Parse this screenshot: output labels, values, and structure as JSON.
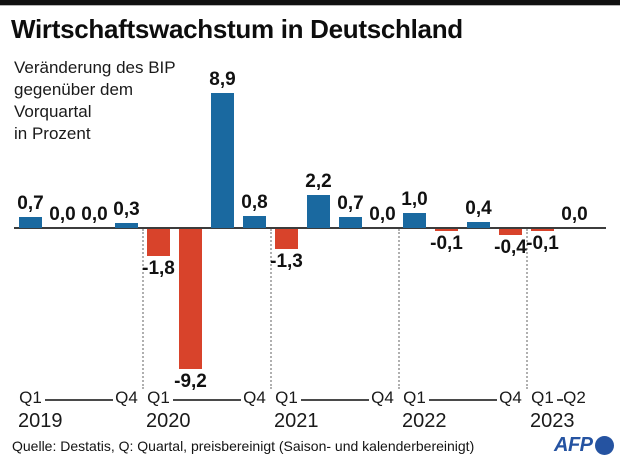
{
  "header": {
    "title": "Wirtschaftswachstum in Deutschland",
    "subtitle": {
      "lines": [
        "Veränderung des BIP",
        "gegenüber dem",
        "Vorquartal",
        "in Prozent"
      ]
    }
  },
  "chart_data": {
    "type": "bar",
    "title": "Wirtschaftswachstum in Deutschland",
    "subtitle": "Veränderung des BIP gegenüber dem Vorquartal in Prozent",
    "unit": "percent, change vs previous quarter",
    "categories": [
      "Q1 2019",
      "Q2 2019",
      "Q3 2019",
      "Q4 2019",
      "Q1 2020",
      "Q2 2020",
      "Q3 2020",
      "Q4 2020",
      "Q1 2021",
      "Q2 2021",
      "Q3 2021",
      "Q4 2021",
      "Q1 2022",
      "Q2 2022",
      "Q3 2022",
      "Q4 2022",
      "Q1 2023",
      "Q2 2023"
    ],
    "values": [
      0.7,
      0.0,
      0.0,
      0.3,
      -1.8,
      -9.2,
      8.9,
      0.8,
      -1.3,
      2.2,
      0.7,
      0.0,
      1.0,
      -0.1,
      0.4,
      -0.4,
      -0.1,
      0.0
    ],
    "value_labels": [
      "0,7",
      "0,0",
      "0,0",
      "0,3",
      "-1,8",
      "-9,2",
      "8,9",
      "0,8",
      "-1,3",
      "2,2",
      "0,7",
      "0,0",
      "1,0",
      "-0,1",
      "0,4",
      "-0,4",
      "-0,1",
      "0,0"
    ],
    "ylim": [
      -9.6,
      9.2
    ],
    "grid": "dotted vertical separators between years",
    "legend": "none",
    "positive_color": "#1a69a0",
    "negative_color": "#d8432b",
    "axis": {
      "years": [
        {
          "year": "2019",
          "start_label": "Q1",
          "end_label": "Q4",
          "start_slot": 0,
          "end_slot": 3
        },
        {
          "year": "2020",
          "start_label": "Q1",
          "end_label": "Q4",
          "start_slot": 4,
          "end_slot": 7
        },
        {
          "year": "2021",
          "start_label": "Q1",
          "end_label": "Q4",
          "start_slot": 8,
          "end_slot": 11
        },
        {
          "year": "2022",
          "start_label": "Q1",
          "end_label": "Q4",
          "start_slot": 12,
          "end_slot": 15
        },
        {
          "year": "2023",
          "start_label": "Q1",
          "end_label": "Q2",
          "start_slot": 16,
          "end_slot": 17
        }
      ],
      "separator_slots": [
        4,
        8,
        12,
        16
      ]
    }
  },
  "footer": {
    "source": "Quelle: Destatis, Q: Quartal, preisbereinigt (Saison- und kalenderbereinigt)",
    "logo_text": "AFP",
    "logo_color": "#2553a1"
  }
}
